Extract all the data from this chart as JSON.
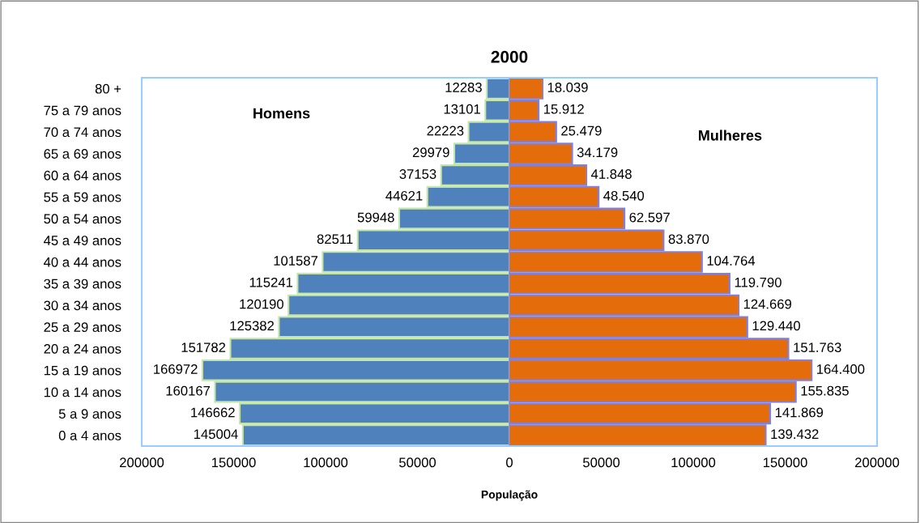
{
  "chart_data": [
    {
      "type": "bar",
      "title": "2000",
      "xlabel": "População",
      "orientation": "horizontal",
      "annotations": [
        "Homens"
      ],
      "categories": [
        "80 +",
        "75 a 79 anos",
        "70 a 74 anos",
        "65 a 69 anos",
        "60 a 64 anos",
        "55 a 59 anos",
        "50 a 54 anos",
        "45 a 49 anos",
        "40 a 44 anos",
        "35 a 39 anos",
        "30 a 34 anos",
        "25 a 29 anos",
        "20 a 24 anos",
        "15 a 19 anos",
        "10 a 14 anos",
        "5 a 9 anos",
        "0 a 4 anos"
      ],
      "series": [
        {
          "color": "#4f81bd",
          "values": [
            12283,
            13101,
            22223,
            29979,
            37153,
            44621,
            59948,
            82511,
            101587,
            115241,
            120190,
            125382,
            151782,
            166972,
            160167,
            146662,
            145004
          ]
        }
      ],
      "data_labels": true,
      "xlim": [
        200000,
        0
      ],
      "xticks": [
        200000,
        150000,
        100000,
        50000
      ],
      "grid": false,
      "legend": false
    },
    {
      "type": "bar",
      "orientation": "horizontal",
      "annotations": [
        "Mulheres"
      ],
      "categories": [
        null,
        null,
        null,
        null,
        null,
        null,
        null,
        null,
        null,
        null,
        null,
        null,
        null,
        null,
        null,
        null,
        null
      ],
      "series": [
        {
          "color": "#e46c0a",
          "values": [
            18039,
            15912,
            25479,
            34179,
            41848,
            48540,
            62597,
            83870,
            104764,
            119790,
            124669,
            129440,
            151763,
            164400,
            155835,
            141869,
            139432
          ],
          "value_labels": [
            "18.039",
            "15.912",
            "25.479",
            "34.179",
            "41.848",
            "48.540",
            "62.597",
            "83.870",
            "104.764",
            "119.790",
            "124.669",
            "129.440",
            "151.763",
            "164.400",
            "155.835",
            "141.869",
            "139.432"
          ]
        }
      ],
      "xlim": [
        0,
        200000
      ],
      "xticks": [
        0,
        50000,
        100000,
        150000,
        200000
      ],
      "tick_labels": "x",
      "grid": false,
      "legend": false
    }
  ]
}
